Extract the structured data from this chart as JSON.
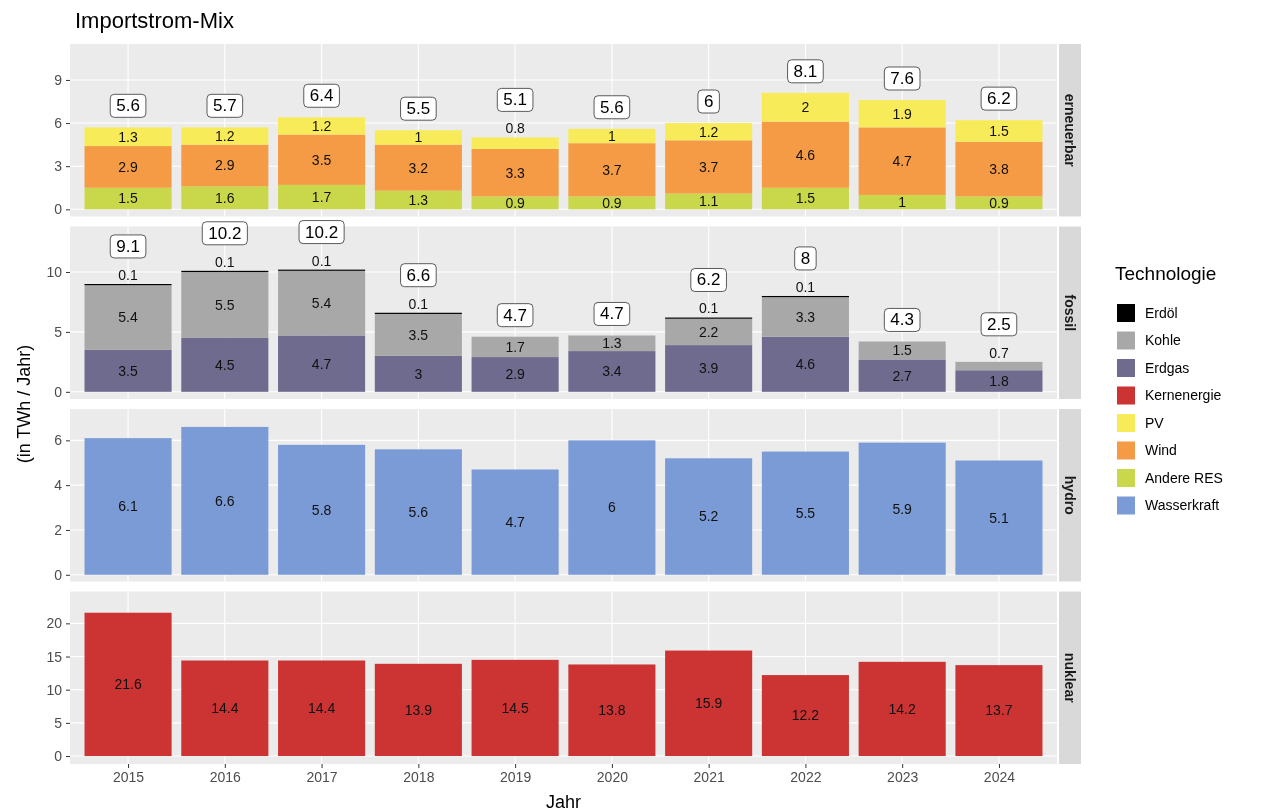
{
  "chart_data": [
    {
      "type": "bar",
      "title": "Importstrom-Mix",
      "subtitle": "erneuerbar",
      "categories": [
        "2015",
        "2016",
        "2017",
        "2018",
        "2019",
        "2020",
        "2021",
        "2022",
        "2023",
        "2024"
      ],
      "stacked": true,
      "data_labels": true,
      "grid": true,
      "legend": "right",
      "tick_labels": "y",
      "ylim": [
        -0.5,
        11.5
      ],
      "yticks": [
        0,
        3,
        6,
        9
      ],
      "series": [
        {
          "name": "Andere RES",
          "color": "#c9d84a",
          "values": [
            1.5,
            1.6,
            1.7,
            1.3,
            0.9,
            0.9,
            1.1,
            1.5,
            1,
            0.9
          ]
        },
        {
          "name": "Wind",
          "color": "#f59a45",
          "values": [
            2.9,
            2.9,
            3.5,
            3.2,
            3.3,
            3.7,
            3.7,
            4.6,
            4.7,
            3.8
          ]
        },
        {
          "name": "PV",
          "color": "#f8eb5a",
          "values": [
            1.3,
            1.2,
            1.2,
            1,
            0.8,
            1,
            1.2,
            2,
            1.9,
            1.5
          ]
        }
      ],
      "totals": [
        "5.6",
        "5.7",
        "6.4",
        "5.5",
        "5.1",
        "5.6",
        "6",
        "8.1",
        "7.6",
        "6.2"
      ]
    },
    {
      "type": "bar",
      "subtitle": "fossil",
      "ylabel": "(in TWh / Jahr)",
      "legend_title": "Technologie",
      "categories": [
        "2015",
        "2016",
        "2017",
        "2018",
        "2019",
        "2020",
        "2021",
        "2022",
        "2023",
        "2024"
      ],
      "stacked": true,
      "data_labels": true,
      "grid": true,
      "legend": "right",
      "tick_labels": "y",
      "ylim": [
        -0.6,
        13.8
      ],
      "yticks": [
        0,
        5,
        10
      ],
      "series": [
        {
          "name": "Erdgas",
          "color": "#6e6b8e",
          "values": [
            3.5,
            4.5,
            4.7,
            3,
            2.9,
            3.4,
            3.9,
            4.6,
            2.7,
            1.8
          ]
        },
        {
          "name": "Kohle",
          "color": "#a8a8a8",
          "values": [
            5.4,
            5.5,
            5.4,
            3.5,
            1.7,
            1.3,
            2.2,
            3.3,
            1.5,
            0.7
          ]
        },
        {
          "name": "Erdöl",
          "color": "#000000",
          "values": [
            0.1,
            0.1,
            0.1,
            0.1,
            0,
            0,
            0.1,
            0.1,
            0,
            0
          ],
          "value_labels": [
            "0.1",
            "0.1",
            "0.1",
            "0.1",
            null,
            null,
            "0.1",
            "0.1",
            null,
            null
          ]
        }
      ],
      "totals": [
        "9.1",
        "10.2",
        "10.2",
        "6.6",
        "4.7",
        "4.7",
        "6.2",
        "8",
        "4.3",
        "2.5"
      ]
    },
    {
      "type": "bar",
      "subtitle": "hydro",
      "categories": [
        "2015",
        "2016",
        "2017",
        "2018",
        "2019",
        "2020",
        "2021",
        "2022",
        "2023",
        "2024"
      ],
      "data_labels": true,
      "grid": true,
      "legend": "right",
      "tick_labels": "y",
      "ylim": [
        -0.3,
        7.4
      ],
      "yticks": [
        0,
        2,
        4,
        6
      ],
      "series": [
        {
          "name": "Wasserkraft",
          "color": "#7b9bd6",
          "values": [
            6.1,
            6.6,
            5.8,
            5.6,
            4.7,
            6,
            5.2,
            5.5,
            5.9,
            5.1
          ]
        }
      ]
    },
    {
      "type": "bar",
      "subtitle": "nuklear",
      "xlabel": "Jahr",
      "categories": [
        "2015",
        "2016",
        "2017",
        "2018",
        "2019",
        "2020",
        "2021",
        "2022",
        "2023",
        "2024"
      ],
      "data_labels": true,
      "grid": true,
      "legend": "right",
      "ylim": [
        -1.2,
        24.8
      ],
      "yticks": [
        0,
        5,
        10,
        15,
        20
      ],
      "series": [
        {
          "name": "Kernenergie",
          "color": "#cc3333",
          "values": [
            21.6,
            14.4,
            14.4,
            13.9,
            14.5,
            13.8,
            15.9,
            12.2,
            14.2,
            13.7
          ]
        }
      ]
    }
  ]
}
